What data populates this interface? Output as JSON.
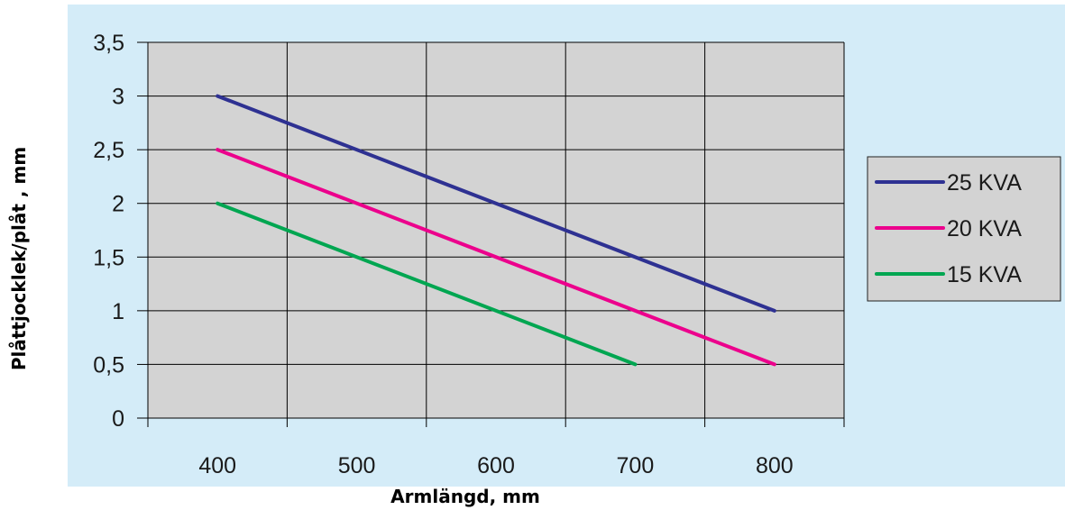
{
  "colors": {
    "panel_bg": "#d4ecf8",
    "plot_bg": "#d3d3d3",
    "grid": "#000000"
  },
  "chart_data": {
    "type": "line",
    "title": "",
    "xlabel": "Armlängd, mm",
    "ylabel": "Plåttjocklek/plåt , mm",
    "xlim": [
      350,
      850
    ],
    "ylim": [
      0,
      3.5
    ],
    "x_ticks": [
      "400",
      "500",
      "600",
      "700",
      "800"
    ],
    "y_ticks": [
      "0",
      "0,5",
      "1",
      "1,5",
      "2",
      "2,5",
      "3",
      "3,5"
    ],
    "grid": true,
    "legend_position": "right",
    "series": [
      {
        "name": "25 KVA",
        "color": "#2e3192",
        "x": [
          400,
          800
        ],
        "y": [
          3.0,
          1.0
        ]
      },
      {
        "name": "20 KVA",
        "color": "#ec008c",
        "x": [
          400,
          800
        ],
        "y": [
          2.5,
          0.5
        ]
      },
      {
        "name": "15 KVA",
        "color": "#00a651",
        "x": [
          400,
          700
        ],
        "y": [
          2.0,
          0.5
        ]
      }
    ]
  }
}
